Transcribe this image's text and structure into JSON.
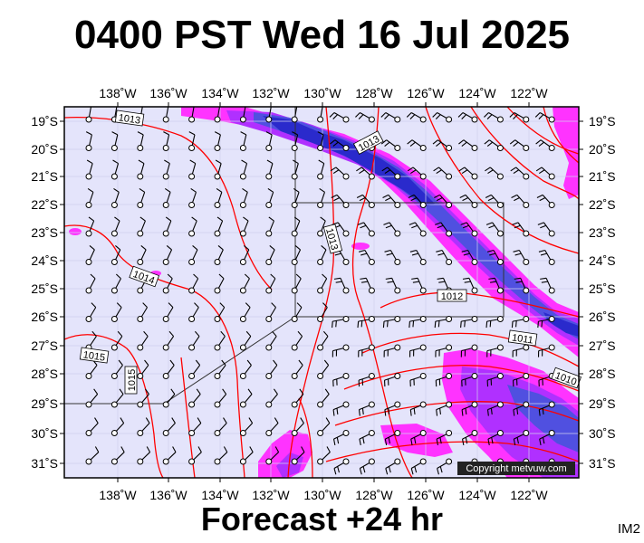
{
  "title": "0400 PST Wed 16 Jul 2025",
  "subtitle": "Forecast +24 hr",
  "code": "IM2",
  "copyright": "Copyright metvuw.com",
  "lon_labels": [
    "138˚W",
    "136˚W",
    "134˚W",
    "132˚W",
    "130˚W",
    "128˚W",
    "126˚W",
    "124˚W",
    "122˚W"
  ],
  "lat_labels": [
    "19˚S",
    "20˚S",
    "21˚S",
    "22˚S",
    "23˚S",
    "24˚S",
    "25˚S",
    "26˚S",
    "27˚S",
    "28˚S",
    "29˚S",
    "30˚S",
    "31˚S"
  ],
  "isobars": [
    {
      "label": "1013"
    },
    {
      "label": "1013"
    },
    {
      "label": "1013"
    },
    {
      "label": "1014"
    },
    {
      "label": "1012"
    },
    {
      "label": "1015"
    },
    {
      "label": "1015"
    },
    {
      "label": "1011"
    },
    {
      "label": "1010"
    }
  ],
  "colors": {
    "sea": "#e4e4fb",
    "isobar": "#ff0000",
    "magenta": "#ff33ff",
    "purple": "#b030ff",
    "blue": "#3a3ad6",
    "deep_blue": "#2020c8"
  }
}
